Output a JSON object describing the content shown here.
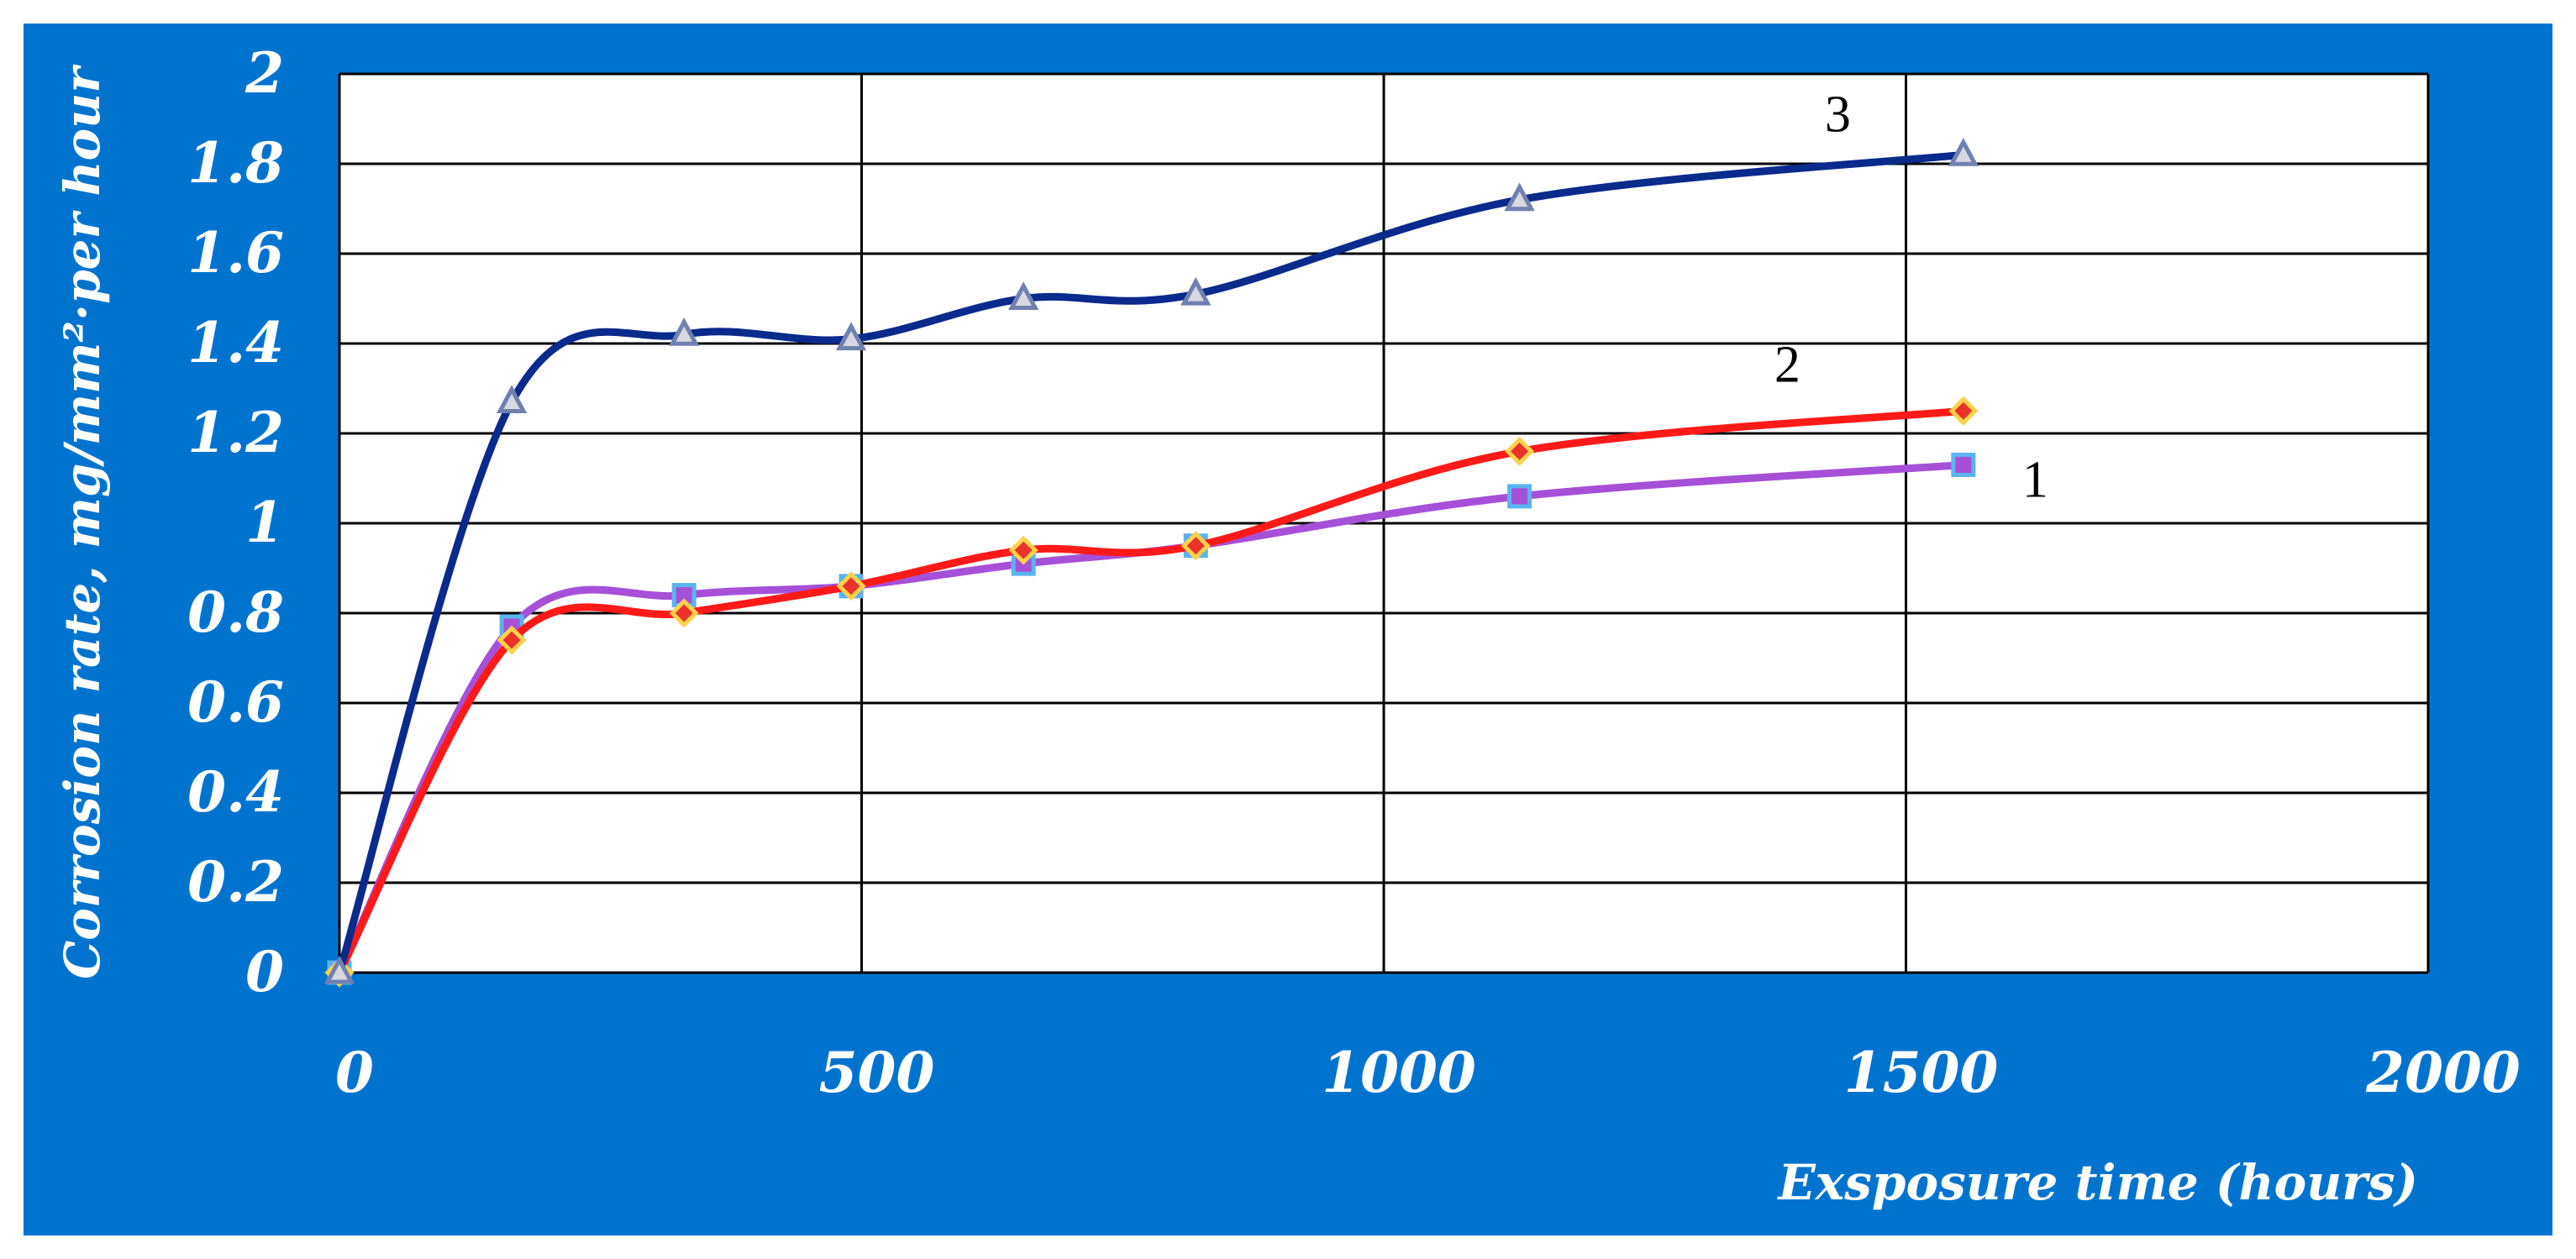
{
  "chart_data": {
    "type": "line",
    "title": "",
    "xlabel": "Exsposure time (hours)",
    "ylabel": "Corrosion rate, mg/mm²·per hour",
    "xlim": [
      0,
      2000
    ],
    "ylim": [
      0,
      2
    ],
    "x_ticks": [
      "0",
      "500",
      "1000",
      "1500",
      "2000"
    ],
    "y_ticks": [
      "0",
      "0.2",
      "0.4",
      "0.6",
      "0.8",
      "1",
      "1.2",
      "1.4",
      "1.6",
      "1.8",
      "2"
    ],
    "grid": true,
    "legend": "inline labels",
    "background_color": "#0073cf",
    "plot_background": "#ffffff",
    "series": [
      {
        "name": "1",
        "color": "#a650d8",
        "marker": "square",
        "marker_color": "#a650d8",
        "marker_edge": "#5ab4f0",
        "x": [
          0,
          165,
          330,
          490,
          655,
          820,
          1130,
          1555
        ],
        "y": [
          0,
          0.77,
          0.84,
          0.86,
          0.91,
          0.95,
          1.06,
          1.13
        ]
      },
      {
        "name": "2",
        "color": "#ff1a1a",
        "marker": "diamond",
        "marker_color": "#e8322a",
        "marker_edge": "#ffd24a",
        "x": [
          0,
          165,
          330,
          490,
          655,
          820,
          1130,
          1555
        ],
        "y": [
          0,
          0.74,
          0.8,
          0.86,
          0.94,
          0.95,
          1.16,
          1.25
        ]
      },
      {
        "name": "3",
        "color": "#0a2a8c",
        "marker": "triangle",
        "marker_color": "#d8d8e0",
        "marker_edge": "#7080b0",
        "x": [
          0,
          165,
          330,
          490,
          655,
          820,
          1130,
          1555
        ],
        "y": [
          0,
          1.27,
          1.42,
          1.41,
          1.5,
          1.51,
          1.72,
          1.82
        ]
      }
    ]
  }
}
